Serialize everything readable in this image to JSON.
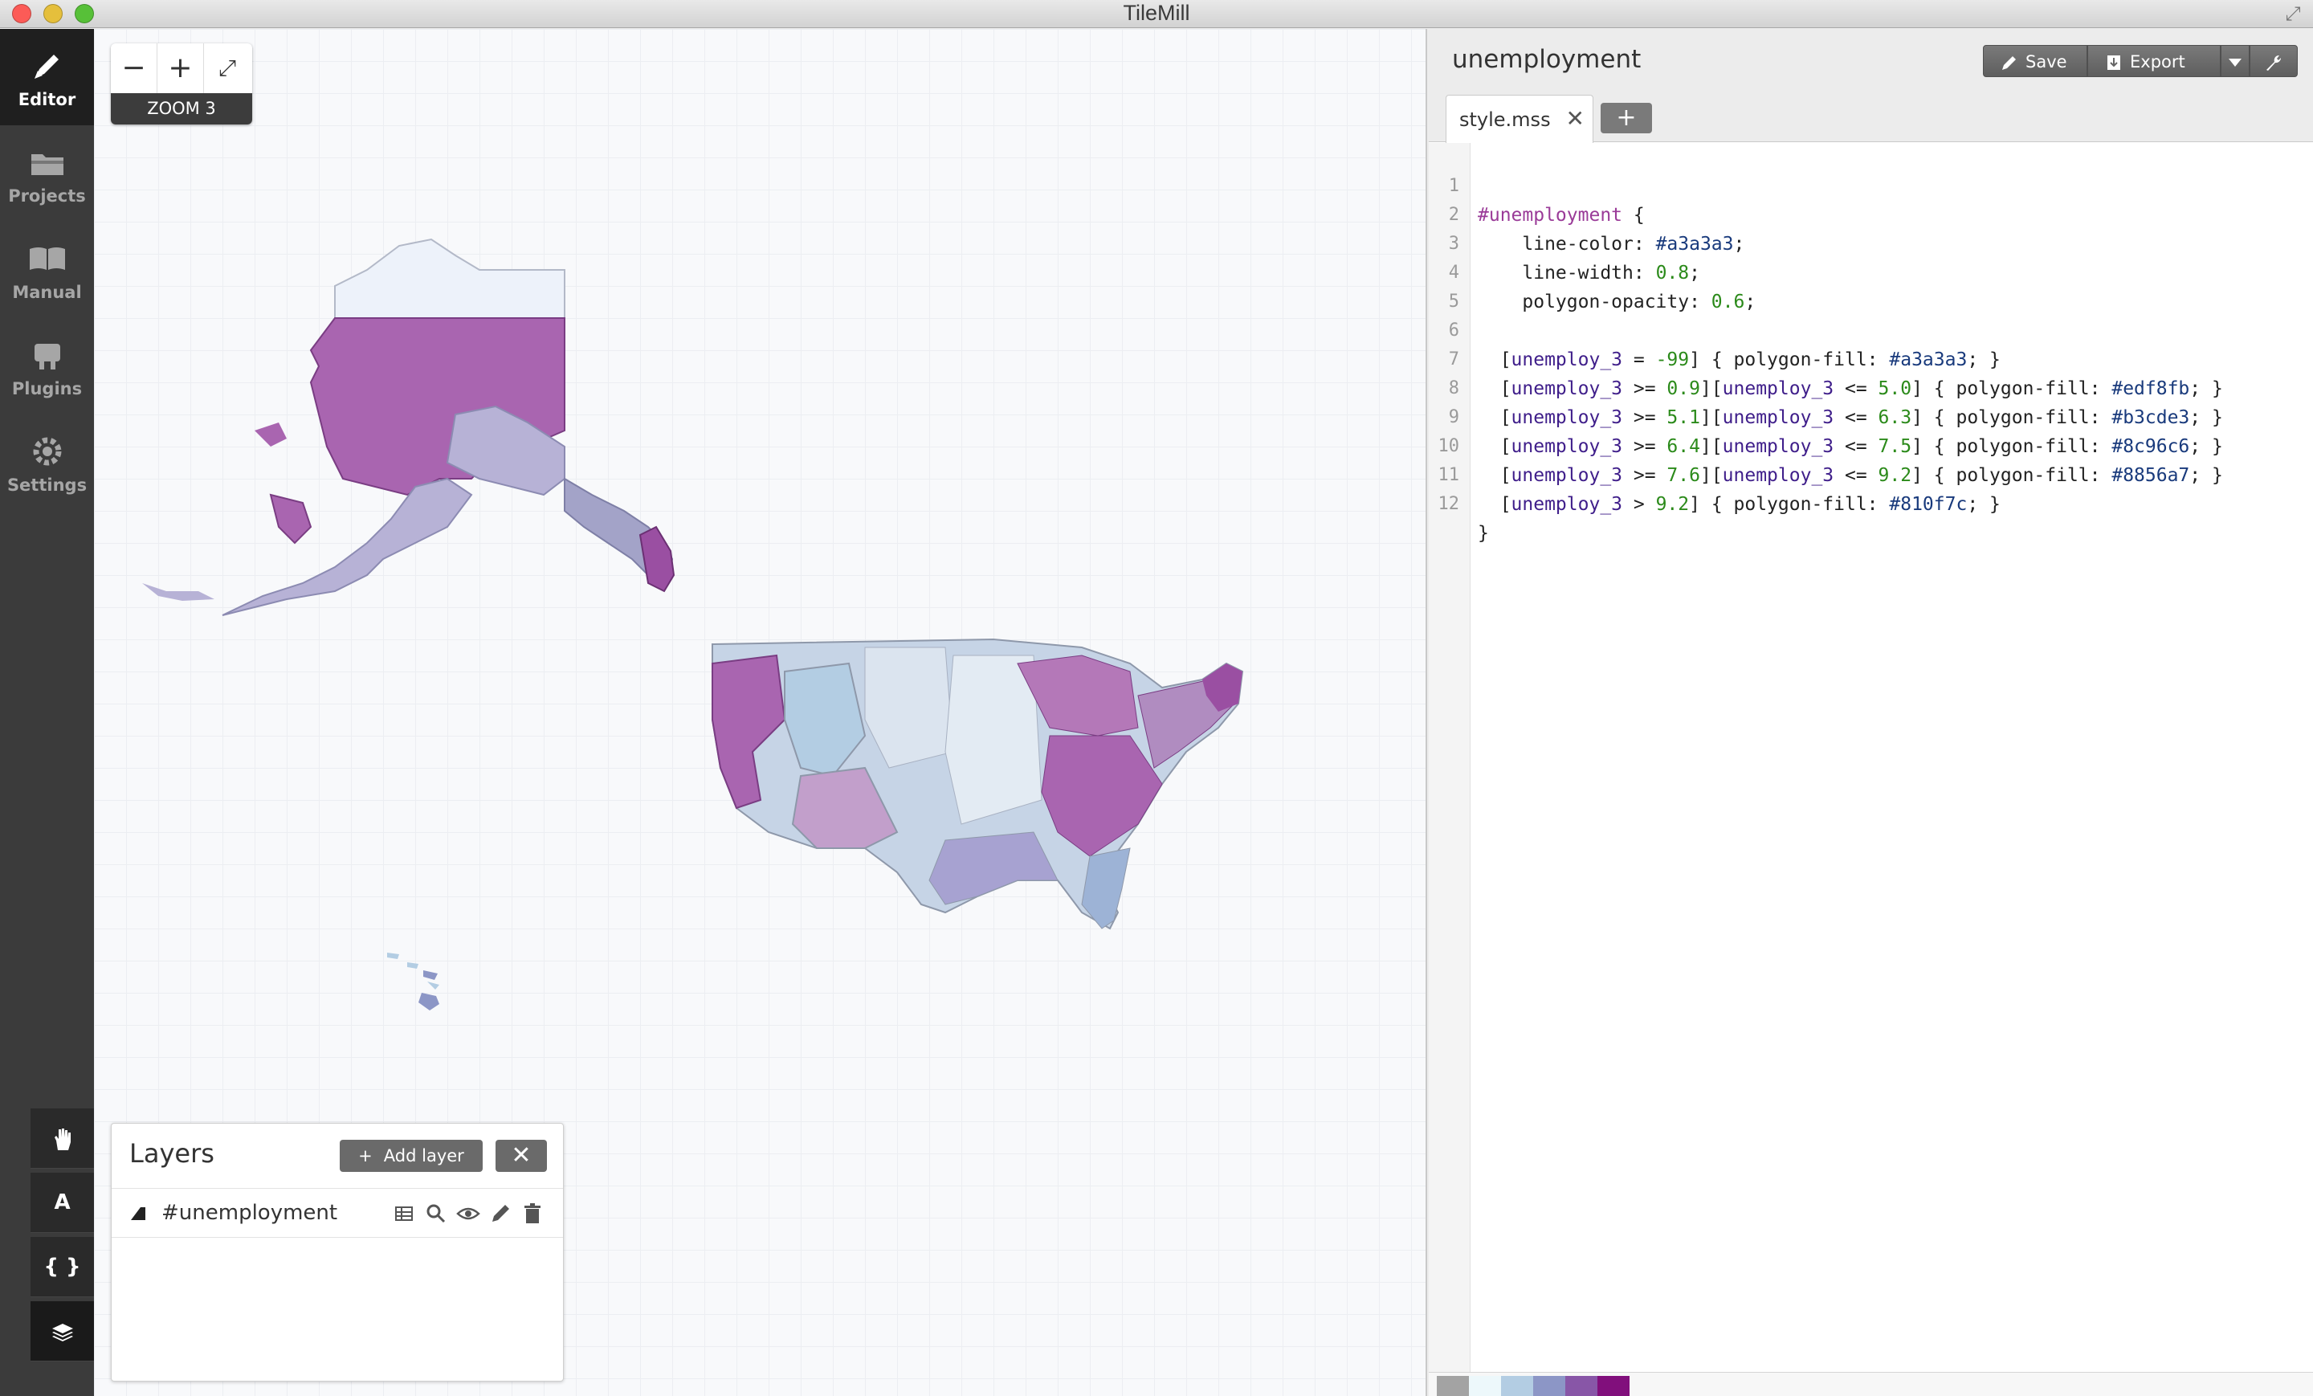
{
  "window": {
    "title": "TileMill"
  },
  "leftnav": {
    "items": [
      {
        "label": "Editor",
        "icon": "pencil-icon",
        "active": true
      },
      {
        "label": "Projects",
        "icon": "folder-icon",
        "active": false
      },
      {
        "label": "Manual",
        "icon": "book-icon",
        "active": false
      },
      {
        "label": "Plugins",
        "icon": "plugin-icon",
        "active": false
      },
      {
        "label": "Settings",
        "icon": "gear-icon",
        "active": false
      }
    ]
  },
  "zoom": {
    "label": "ZOOM 3"
  },
  "map_tools": [
    {
      "icon": "hand-icon",
      "glyph": ""
    },
    {
      "icon": "font-icon",
      "glyph": "A"
    },
    {
      "icon": "braces-icon",
      "glyph": "{ }"
    },
    {
      "icon": "layers-icon",
      "glyph": ""
    }
  ],
  "layers_panel": {
    "title": "Layers",
    "add_label": "Add layer",
    "close_glyph": "✕",
    "layers": [
      {
        "name": "#unemployment"
      }
    ]
  },
  "editor": {
    "project_title": "unemployment",
    "save_label": "Save",
    "export_label": "Export",
    "tab_label": "style.mss",
    "tab_close": "✕",
    "tab_add": "+",
    "code_lines": [
      "1",
      "2",
      "3",
      "4",
      "5",
      "6",
      "7",
      "8",
      "9",
      "10",
      "11",
      "12"
    ]
  },
  "code": {
    "l1": {
      "sel": "#unemployment",
      "rest": " {"
    },
    "l2": {
      "prop": "    line-color: ",
      "val": "#a3a3a3",
      "end": ";"
    },
    "l3": {
      "prop": "    line-width: ",
      "val": "0.8",
      "end": ";"
    },
    "l4": {
      "prop": "    polygon-opacity: ",
      "val": "0.6",
      "end": ";"
    },
    "l6": {
      "a": "unemploy_3",
      "op": " = ",
      "n": "-99",
      "fill": "#a3a3a3"
    },
    "l7": {
      "a": "unemploy_3",
      "op": " >= ",
      "n": "0.9",
      "a2": "unemploy_3",
      "op2": " <= ",
      "n2": "5.0",
      "fill": "#edf8fb"
    },
    "l8": {
      "a": "unemploy_3",
      "op": " >= ",
      "n": "5.1",
      "a2": "unemploy_3",
      "op2": " <= ",
      "n2": "6.3",
      "fill": "#b3cde3"
    },
    "l9": {
      "a": "unemploy_3",
      "op": " >= ",
      "n": "6.4",
      "a2": "unemploy_3",
      "op2": " <= ",
      "n2": "7.5",
      "fill": "#8c96c6"
    },
    "l10": {
      "a": "unemploy_3",
      "op": " >= ",
      "n": "7.6",
      "a2": "unemploy_3",
      "op2": " <= ",
      "n2": "9.2",
      "fill": "#8856a7"
    },
    "l11": {
      "a": "unemploy_3",
      "op": " > ",
      "n": "9.2",
      "fill": "#810f7c"
    },
    "l12": "}"
  },
  "palette": [
    "#a3a3a3",
    "#edf8fb",
    "#b3cde3",
    "#8c96c6",
    "#8856a7",
    "#810f7c"
  ],
  "colors": {
    "sidebar_bg": "#3b3b3b",
    "accent_purple": "#9a3b98",
    "map_bg": "#f8f9fb"
  }
}
